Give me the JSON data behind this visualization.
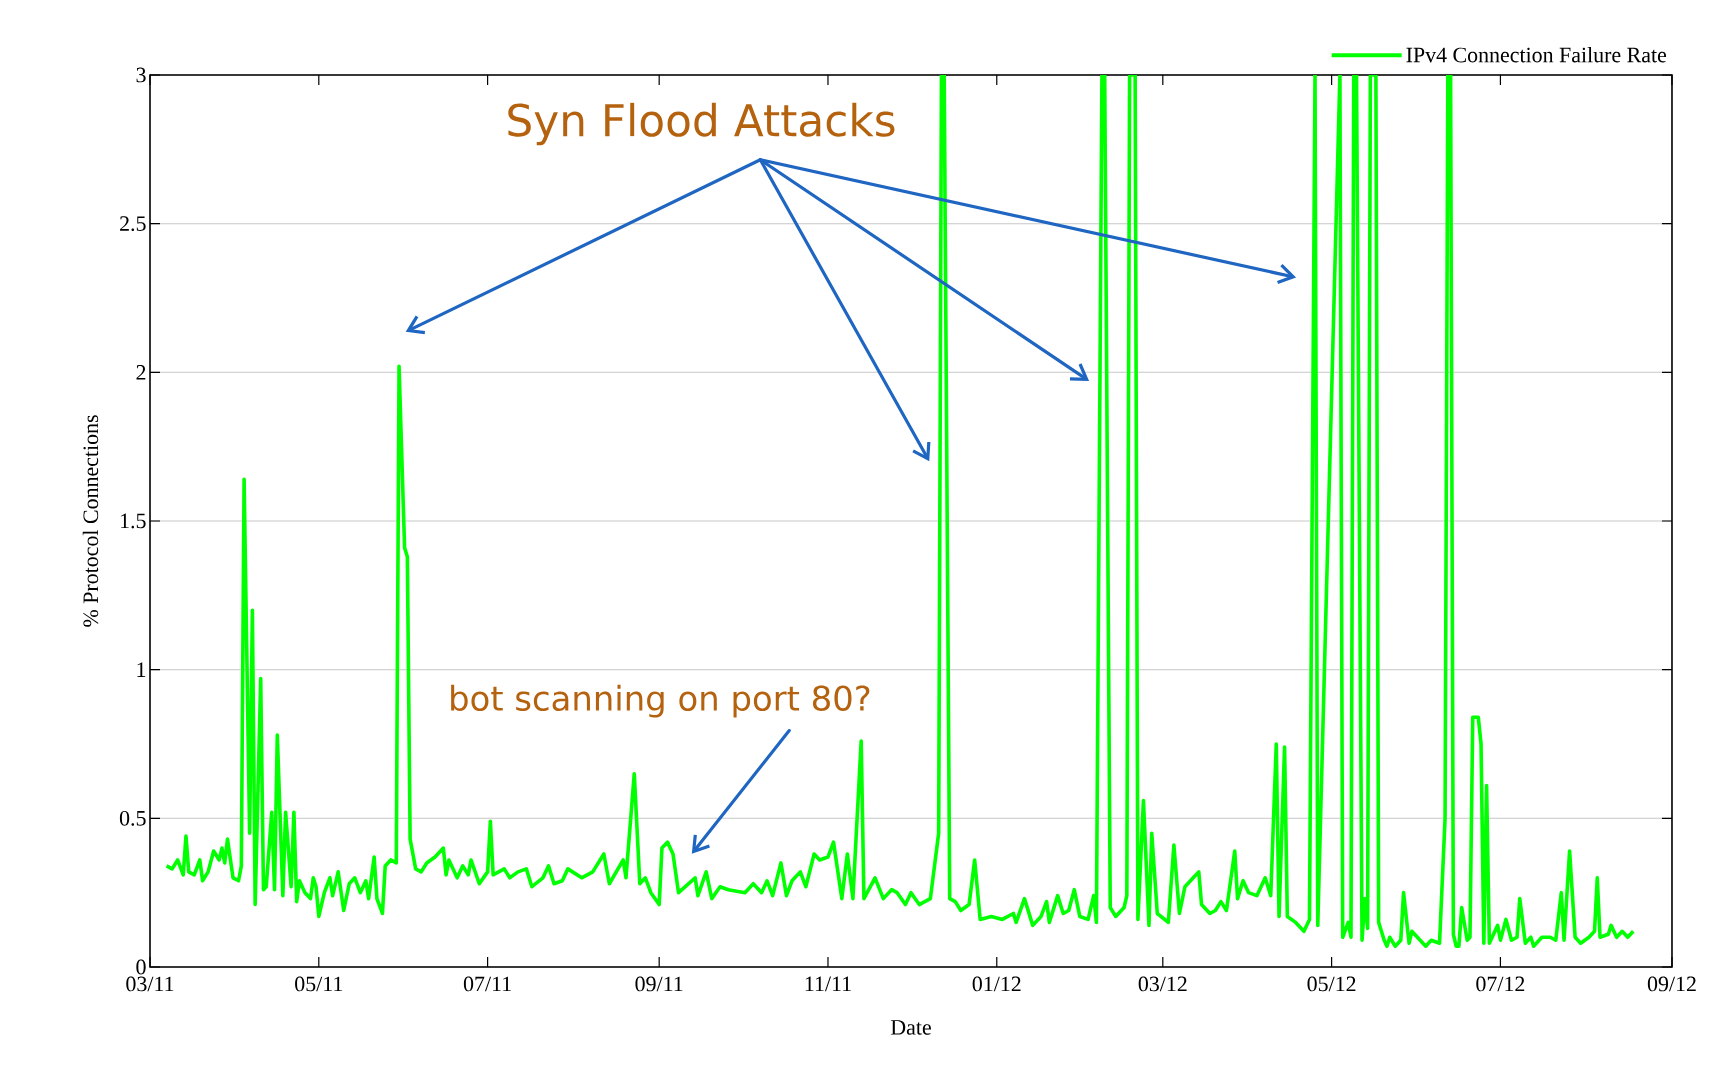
{
  "chart_data": {
    "type": "line",
    "xlabel": "Date",
    "ylabel": "% Protocol Connections",
    "annotations": [
      "Syn Flood Attacks",
      "bot scanning on port 80?"
    ],
    "xlim": [
      "2011-03-01",
      "2012-09-01"
    ],
    "xticks": [
      {
        "value": "2011-03-01",
        "label": "03/11"
      },
      {
        "value": "2011-05-01",
        "label": "05/11"
      },
      {
        "value": "2011-07-01",
        "label": "07/11"
      },
      {
        "value": "2011-09-01",
        "label": "09/11"
      },
      {
        "value": "2011-11-01",
        "label": "11/11"
      },
      {
        "value": "2012-01-01",
        "label": "01/12"
      },
      {
        "value": "2012-03-01",
        "label": "03/12"
      },
      {
        "value": "2012-05-01",
        "label": "05/12"
      },
      {
        "value": "2012-07-01",
        "label": "07/12"
      },
      {
        "value": "2012-09-01",
        "label": "09/12"
      }
    ],
    "ylim": [
      0,
      3
    ],
    "yticks": [
      0,
      0.5,
      1,
      1.5,
      2,
      2.5,
      3
    ],
    "grid": "y",
    "legend": "top right",
    "series": [
      {
        "name": "IPv4 Connection Failure Rate",
        "color": "#00ff00",
        "x": [
          "2011-03-07",
          "2011-03-09",
          "2011-03-11",
          "2011-03-13",
          "2011-03-14",
          "2011-03-15",
          "2011-03-17",
          "2011-03-19",
          "2011-03-20",
          "2011-03-22",
          "2011-03-24",
          "2011-03-26",
          "2011-03-27",
          "2011-03-28",
          "2011-03-29",
          "2011-03-31",
          "2011-04-02",
          "2011-04-03",
          "2011-04-04",
          "2011-04-06",
          "2011-04-07",
          "2011-04-08",
          "2011-04-10",
          "2011-04-11",
          "2011-04-12",
          "2011-04-14",
          "2011-04-15",
          "2011-04-16",
          "2011-04-18",
          "2011-04-19",
          "2011-04-21",
          "2011-04-22",
          "2011-04-23",
          "2011-04-24",
          "2011-04-26",
          "2011-04-28",
          "2011-04-29",
          "2011-04-30",
          "2011-05-01",
          "2011-05-03",
          "2011-05-05",
          "2011-05-06",
          "2011-05-08",
          "2011-05-10",
          "2011-05-12",
          "2011-05-14",
          "2011-05-16",
          "2011-05-18",
          "2011-05-19",
          "2011-05-21",
          "2011-05-22",
          "2011-05-24",
          "2011-05-25",
          "2011-05-27",
          "2011-05-29",
          "2011-05-30",
          "2011-06-01",
          "2011-06-02",
          "2011-06-03",
          "2011-06-05",
          "2011-06-07",
          "2011-06-09",
          "2011-06-12",
          "2011-06-15",
          "2011-06-16",
          "2011-06-17",
          "2011-06-20",
          "2011-06-22",
          "2011-06-24",
          "2011-06-25",
          "2011-06-28",
          "2011-07-01",
          "2011-07-02",
          "2011-07-03",
          "2011-07-07",
          "2011-07-09",
          "2011-07-12",
          "2011-07-15",
          "2011-07-17",
          "2011-07-21",
          "2011-07-23",
          "2011-07-25",
          "2011-07-28",
          "2011-07-30",
          "2011-08-04",
          "2011-08-08",
          "2011-08-12",
          "2011-08-14",
          "2011-08-19",
          "2011-08-20",
          "2011-08-23",
          "2011-08-25",
          "2011-08-27",
          "2011-08-29",
          "2011-09-01",
          "2011-09-02",
          "2011-09-04",
          "2011-09-06",
          "2011-09-08",
          "2011-09-14",
          "2011-09-15",
          "2011-09-18",
          "2011-09-20",
          "2011-09-23",
          "2011-09-26",
          "2011-10-02",
          "2011-10-05",
          "2011-10-08",
          "2011-10-10",
          "2011-10-12",
          "2011-10-15",
          "2011-10-17",
          "2011-10-19",
          "2011-10-22",
          "2011-10-24",
          "2011-10-27",
          "2011-10-29",
          "2011-11-01",
          "2011-11-03",
          "2011-11-06",
          "2011-11-08",
          "2011-11-10",
          "2011-11-13",
          "2011-11-14",
          "2011-11-18",
          "2011-11-21",
          "2011-11-24",
          "2011-11-26",
          "2011-11-29",
          "2011-12-01",
          "2011-12-04",
          "2011-12-08",
          "2011-12-11",
          "2011-12-12",
          "2011-12-13",
          "2011-12-15",
          "2011-12-17",
          "2011-12-19",
          "2011-12-22",
          "2011-12-24",
          "2011-12-26",
          "2011-12-30",
          "2012-01-03",
          "2012-01-07",
          "2012-01-08",
          "2012-01-11",
          "2012-01-14",
          "2012-01-17",
          "2012-01-19",
          "2012-01-20",
          "2012-01-23",
          "2012-01-25",
          "2012-01-27",
          "2012-01-29",
          "2012-01-31",
          "2012-02-03",
          "2012-02-05",
          "2012-02-06",
          "2012-02-08",
          "2012-02-09",
          "2012-02-11",
          "2012-02-13",
          "2012-02-16",
          "2012-02-17",
          "2012-02-18",
          "2012-02-20",
          "2012-02-21",
          "2012-02-23",
          "2012-02-25",
          "2012-02-26",
          "2012-02-28",
          "2012-03-03",
          "2012-03-05",
          "2012-03-07",
          "2012-03-09",
          "2012-03-12",
          "2012-03-14",
          "2012-03-15",
          "2012-03-18",
          "2012-03-20",
          "2012-03-22",
          "2012-03-24",
          "2012-03-27",
          "2012-03-28",
          "2012-03-30",
          "2012-04-01",
          "2012-04-04",
          "2012-04-07",
          "2012-04-09",
          "2012-04-11",
          "2012-04-12",
          "2012-04-14",
          "2012-04-15",
          "2012-04-18",
          "2012-04-21",
          "2012-04-23",
          "2012-04-24",
          "2012-04-25",
          "2012-04-26",
          "2012-05-04",
          "2012-05-05",
          "2012-05-07",
          "2012-05-08",
          "2012-05-09",
          "2012-05-10",
          "2012-05-12",
          "2012-05-13",
          "2012-05-14",
          "2012-05-15",
          "2012-05-17",
          "2012-05-18",
          "2012-05-20",
          "2012-05-21",
          "2012-05-22",
          "2012-05-24",
          "2012-05-26",
          "2012-05-27",
          "2012-05-29",
          "2012-05-30",
          "2012-06-01",
          "2012-06-04",
          "2012-06-06",
          "2012-06-09",
          "2012-06-11",
          "2012-06-12",
          "2012-06-13",
          "2012-06-14",
          "2012-06-15",
          "2012-06-16",
          "2012-06-17",
          "2012-06-19",
          "2012-06-20",
          "2012-06-21",
          "2012-06-23",
          "2012-06-24",
          "2012-06-25",
          "2012-06-26",
          "2012-06-27",
          "2012-06-30",
          "2012-07-01",
          "2012-07-03",
          "2012-07-05",
          "2012-07-07",
          "2012-07-08",
          "2012-07-10",
          "2012-07-12",
          "2012-07-13",
          "2012-07-16",
          "2012-07-19",
          "2012-07-21",
          "2012-07-23",
          "2012-07-24",
          "2012-07-26",
          "2012-07-28",
          "2012-07-30",
          "2012-08-02",
          "2012-08-04",
          "2012-08-05",
          "2012-08-06",
          "2012-08-09",
          "2012-08-10",
          "2012-08-12",
          "2012-08-14",
          "2012-08-16",
          "2012-08-18"
        ],
        "values": [
          0.34,
          0.33,
          0.36,
          0.31,
          0.44,
          0.32,
          0.31,
          0.36,
          0.29,
          0.32,
          0.39,
          0.36,
          0.4,
          0.35,
          0.43,
          0.3,
          0.29,
          0.34,
          1.64,
          0.45,
          1.2,
          0.21,
          0.97,
          0.26,
          0.27,
          0.52,
          0.26,
          0.78,
          0.24,
          0.52,
          0.27,
          0.52,
          0.22,
          0.29,
          0.25,
          0.23,
          0.3,
          0.27,
          0.17,
          0.25,
          0.3,
          0.24,
          0.32,
          0.19,
          0.28,
          0.3,
          0.25,
          0.29,
          0.23,
          0.37,
          0.23,
          0.18,
          0.34,
          0.36,
          0.35,
          2.02,
          1.41,
          1.38,
          0.43,
          0.33,
          0.32,
          0.35,
          0.37,
          0.4,
          0.31,
          0.36,
          0.3,
          0.34,
          0.31,
          0.36,
          0.28,
          0.32,
          0.49,
          0.31,
          0.33,
          0.3,
          0.32,
          0.33,
          0.27,
          0.3,
          0.34,
          0.28,
          0.29,
          0.33,
          0.3,
          0.32,
          0.38,
          0.28,
          0.36,
          0.3,
          0.65,
          0.28,
          0.3,
          0.25,
          0.21,
          0.4,
          0.42,
          0.38,
          0.25,
          0.3,
          0.24,
          0.32,
          0.23,
          0.27,
          0.26,
          0.25,
          0.28,
          0.25,
          0.29,
          0.24,
          0.35,
          0.24,
          0.29,
          0.32,
          0.27,
          0.38,
          0.36,
          0.37,
          0.42,
          0.23,
          0.38,
          0.23,
          0.76,
          0.23,
          0.3,
          0.23,
          0.26,
          0.25,
          0.21,
          0.25,
          0.21,
          0.23,
          0.45,
          3,
          3,
          0.23,
          0.22,
          0.19,
          0.21,
          0.36,
          0.16,
          0.17,
          0.16,
          0.18,
          0.15,
          0.23,
          0.14,
          0.17,
          0.22,
          0.15,
          0.24,
          0.18,
          0.19,
          0.26,
          0.17,
          0.16,
          0.24,
          0.15,
          3,
          3,
          0.2,
          0.17,
          0.2,
          0.24,
          3,
          3,
          0.16,
          0.56,
          0.14,
          0.45,
          0.18,
          0.15,
          0.41,
          0.18,
          0.27,
          0.3,
          0.32,
          0.21,
          0.18,
          0.19,
          0.22,
          0.19,
          0.39,
          0.23,
          0.29,
          0.25,
          0.24,
          0.3,
          0.24,
          0.75,
          0.17,
          0.74,
          0.17,
          0.15,
          0.12,
          0.16,
          1.58,
          3,
          0.14,
          3,
          0.1,
          0.15,
          0.1,
          3,
          3,
          0.09,
          0.23,
          0.13,
          3,
          3,
          0.15,
          0.09,
          0.07,
          0.1,
          0.07,
          0.09,
          0.25,
          0.08,
          0.12,
          0.1,
          0.07,
          0.09,
          0.08,
          0.5,
          3,
          3,
          0.11,
          0.07,
          0.07,
          0.2,
          0.09,
          0.1,
          0.84,
          0.84,
          0.75,
          0.08,
          0.61,
          0.08,
          0.14,
          0.09,
          0.16,
          0.09,
          0.1,
          0.23,
          0.08,
          0.1,
          0.07,
          0.1,
          0.1,
          0.09,
          0.25,
          0.09,
          0.39,
          0.1,
          0.08,
          0.1,
          0.12,
          0.3,
          0.1,
          0.11,
          0.14,
          0.1,
          0.12,
          0.1,
          0.12
        ]
      }
    ]
  }
}
